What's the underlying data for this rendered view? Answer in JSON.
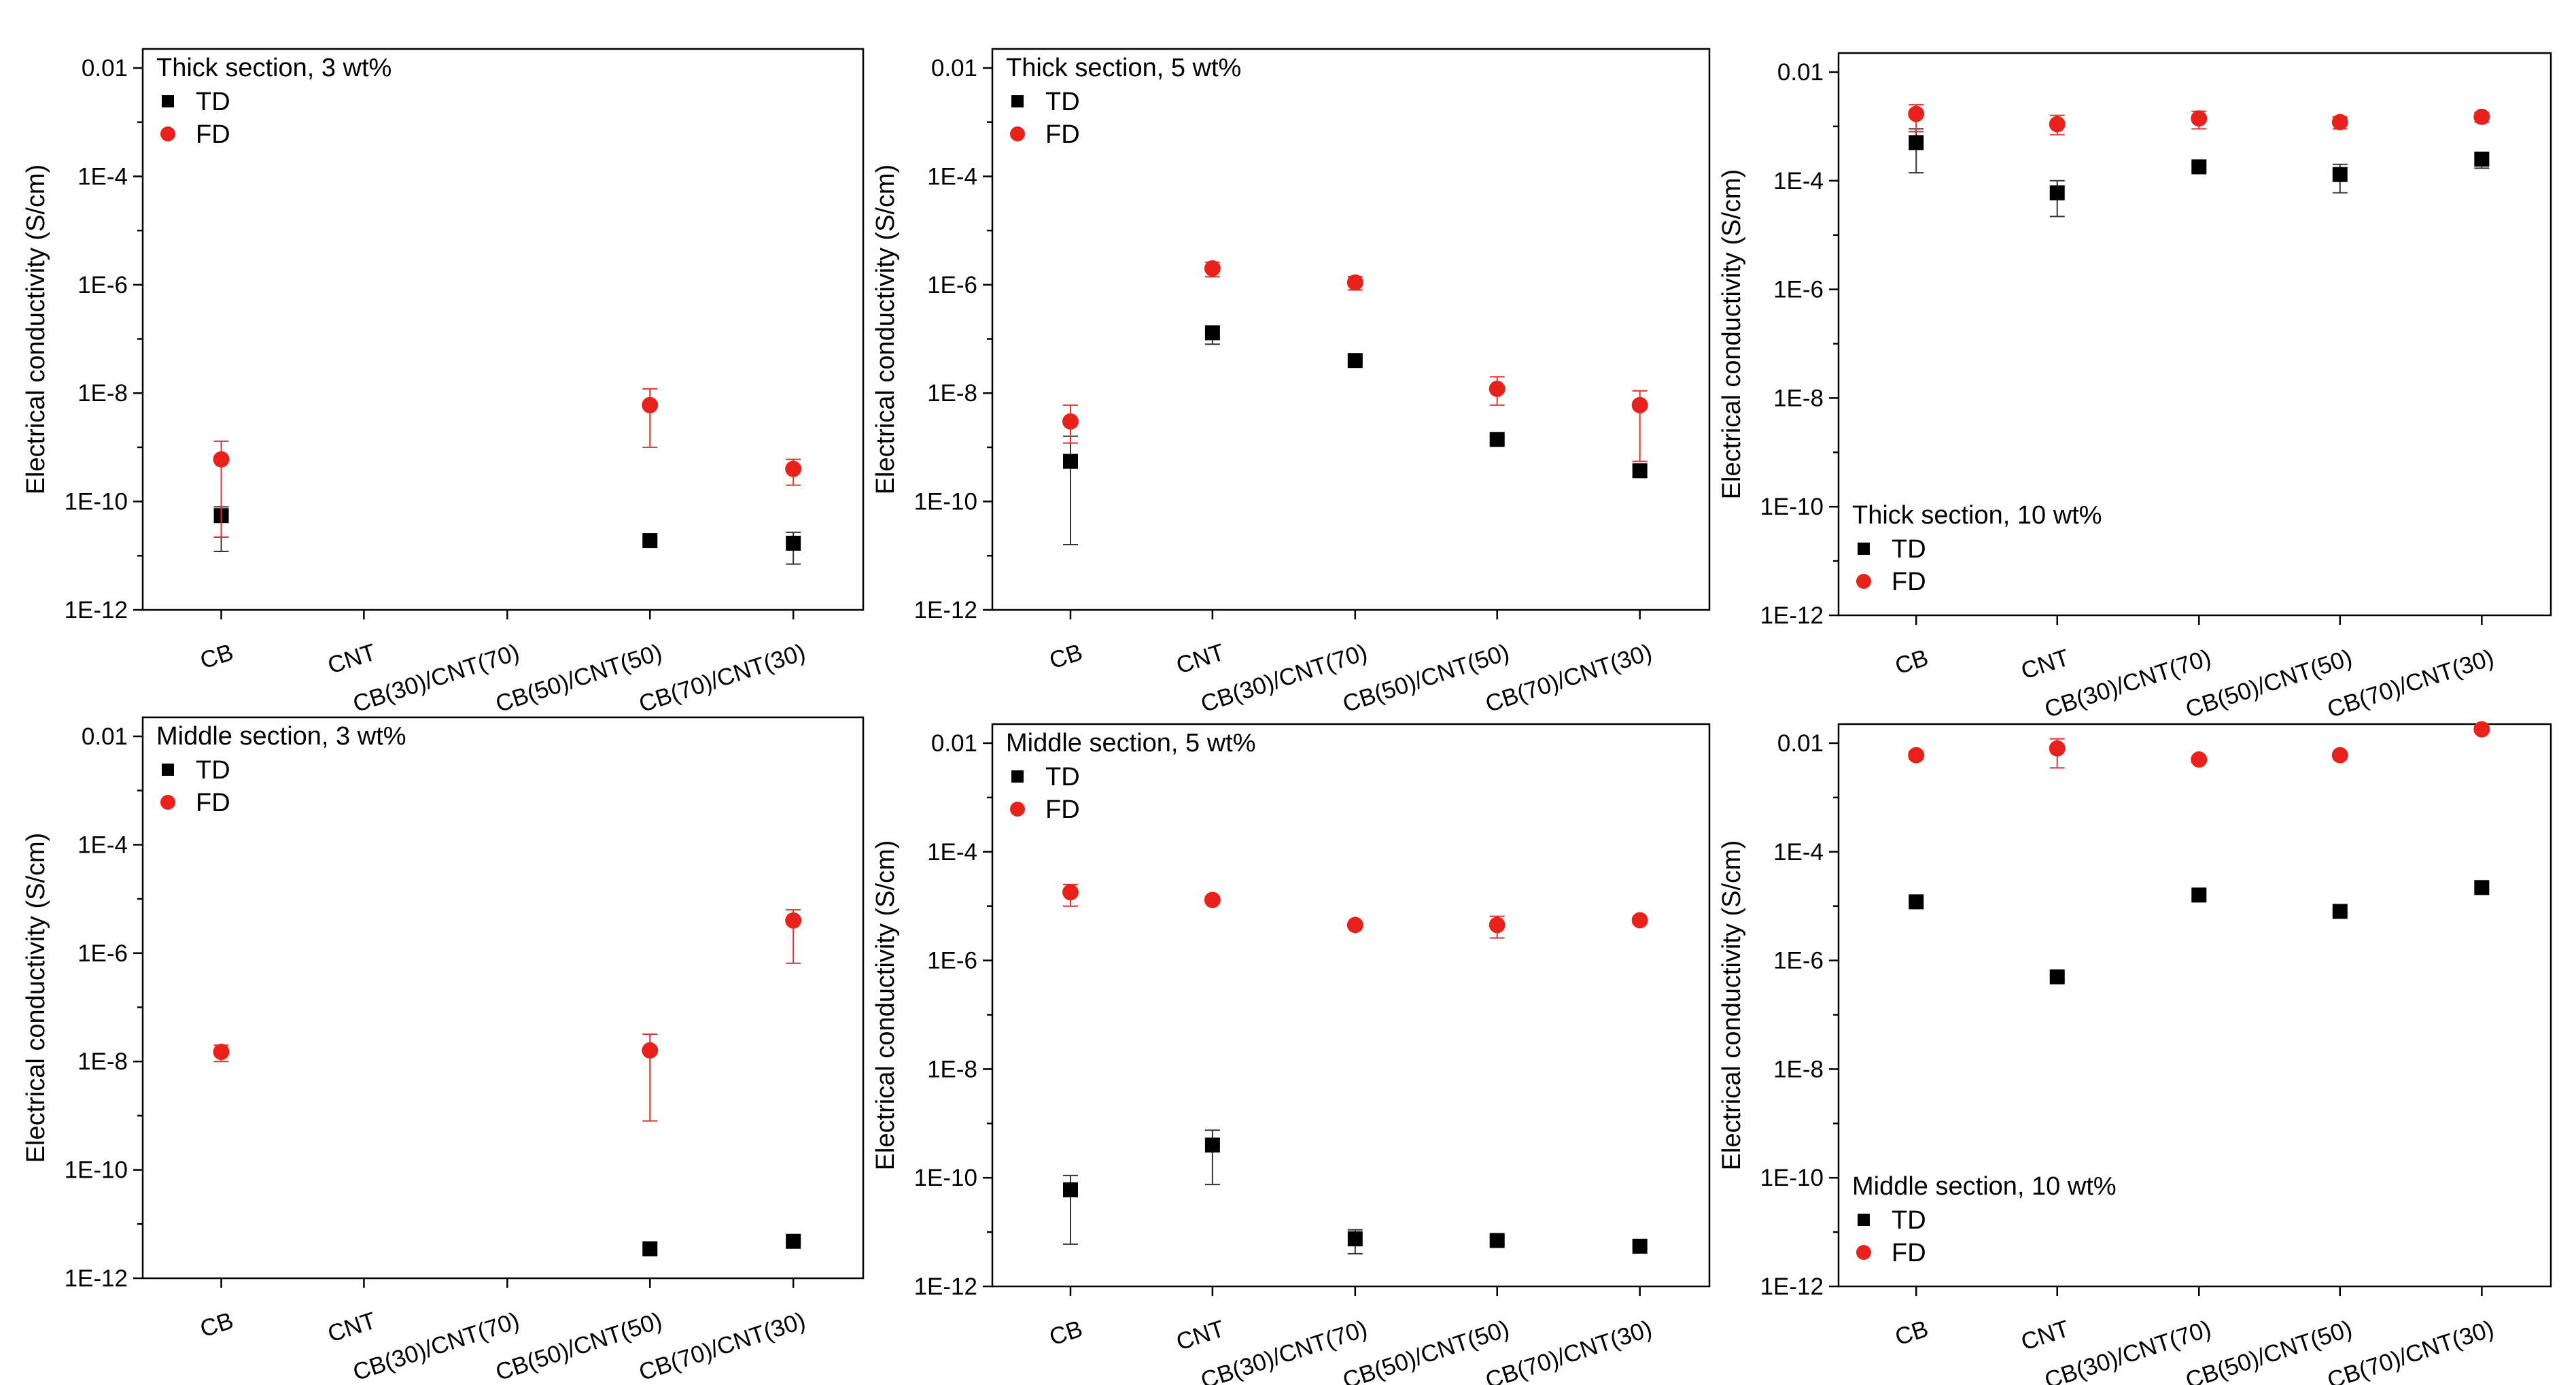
{
  "figure": {
    "y_axis_label": "Electrical conductivity (S/cm)",
    "y_tick_labels": [
      "0.01",
      "1E-4",
      "1E-6",
      "1E-8",
      "1E-10",
      "1E-12"
    ],
    "colors": {
      "TD": "#000000",
      "FD": "#e8211b",
      "FD_error": "#e03030",
      "TD_error": "#333333"
    }
  },
  "chart_data": [
    {
      "type": "scatter",
      "title": "Thick section, 3 wt%",
      "legend_position": "top-left",
      "ylabel": "Electrical conductivity (S/cm)",
      "yscale": "log",
      "ylim": [
        1e-12,
        0.01
      ],
      "categories": [
        "CB",
        "CNT",
        "CB(30)/CNT(70)",
        "CB(50)/CNT(50)",
        "CB(70)/CNT(30)"
      ],
      "series": [
        {
          "name": "TD",
          "marker": "square",
          "values": [
            5.5e-11,
            null,
            null,
            1.9e-11,
            1.7e-11
          ],
          "err_low": [
            1.2e-11,
            null,
            null,
            1.7e-11,
            7e-12
          ],
          "err_high": [
            8e-11,
            null,
            null,
            2.1e-11,
            2.7e-11
          ]
        },
        {
          "name": "FD",
          "marker": "circle",
          "values": [
            6e-10,
            null,
            null,
            6e-09,
            4e-10
          ],
          "err_low": [
            2.2e-11,
            null,
            null,
            1e-09,
            2e-10
          ],
          "err_high": [
            1.3e-09,
            null,
            null,
            1.2e-08,
            6e-10
          ]
        }
      ]
    },
    {
      "type": "scatter",
      "title": "Thick section, 5 wt%",
      "legend_position": "top-left",
      "ylabel": "Electrical conductivity (S/cm)",
      "yscale": "log",
      "ylim": [
        1e-12,
        0.01
      ],
      "categories": [
        "CB",
        "CNT",
        "CB(30)/CNT(70)",
        "CB(50)/CNT(50)",
        "CB(70)/CNT(30)"
      ],
      "series": [
        {
          "name": "TD",
          "marker": "square",
          "values": [
            5.5e-10,
            1.3e-07,
            4e-08,
            1.4e-09,
            3.7e-10
          ],
          "err_low": [
            1.6e-11,
            8e-08,
            3.6e-08,
            1.2e-09,
            2.9e-10
          ],
          "err_high": [
            1.6e-09,
            1.7e-07,
            4.4e-08,
            1.6e-09,
            4.8e-10
          ]
        },
        {
          "name": "FD",
          "marker": "circle",
          "values": [
            3e-09,
            2e-06,
            1.1e-06,
            1.2e-08,
            6e-09
          ],
          "err_low": [
            1.2e-09,
            1.4e-06,
            8e-07,
            6e-09,
            5.5e-10
          ],
          "err_high": [
            6e-09,
            2.6e-06,
            1.4e-06,
            2e-08,
            1.1e-08
          ]
        }
      ]
    },
    {
      "type": "scatter",
      "title": "Thick section, 10 wt%",
      "legend_position": "bottom-left",
      "ylabel": "Electrical conductivity (S/cm)",
      "yscale": "log",
      "ylim": [
        1e-12,
        0.01
      ],
      "categories": [
        "CB",
        "CNT",
        "CB(30)/CNT(70)",
        "CB(50)/CNT(50)",
        "CB(70)/CNT(30)"
      ],
      "series": [
        {
          "name": "TD",
          "marker": "square",
          "values": [
            0.0005,
            6e-05,
            0.00018,
            0.00013,
            0.00025
          ],
          "err_low": [
            0.00014,
            2.2e-05,
            0.00016,
            6e-05,
            0.00017
          ],
          "err_high": [
            0.0009,
            0.0001,
            0.0002,
            0.0002,
            0.0003
          ]
        },
        {
          "name": "FD",
          "marker": "circle",
          "values": [
            0.0017,
            0.0011,
            0.0014,
            0.0012,
            0.0015
          ],
          "err_low": [
            0.0008,
            0.0007,
            0.0009,
            0.0009,
            0.0012
          ],
          "err_high": [
            0.0025,
            0.0016,
            0.0019,
            0.0015,
            0.0018
          ]
        }
      ]
    },
    {
      "type": "scatter",
      "title": "Middle section, 3 wt%",
      "legend_position": "top-left",
      "ylabel": "Electrical conductivity (S/cm)",
      "yscale": "log",
      "ylim": [
        1e-12,
        0.01
      ],
      "categories": [
        "CB",
        "CNT",
        "CB(30)/CNT(70)",
        "CB(50)/CNT(50)",
        "CB(70)/CNT(30)"
      ],
      "series": [
        {
          "name": "TD",
          "marker": "square",
          "values": [
            null,
            null,
            null,
            3.5e-12,
            4.8e-12
          ],
          "err_low": [
            null,
            null,
            null,
            2.7e-12,
            4.4e-12
          ],
          "err_high": [
            null,
            null,
            null,
            4.3e-12,
            5.2e-12
          ]
        },
        {
          "name": "FD",
          "marker": "circle",
          "values": [
            1.5e-08,
            null,
            null,
            1.6e-08,
            4e-06
          ],
          "err_low": [
            1e-08,
            null,
            null,
            8e-10,
            6.5e-07
          ],
          "err_high": [
            2e-08,
            null,
            null,
            3.2e-08,
            6.3e-06
          ]
        }
      ]
    },
    {
      "type": "scatter",
      "title": "Middle section, 5 wt%",
      "legend_position": "top-left",
      "ylabel": "Electrical conductivity (S/cm)",
      "yscale": "log",
      "ylim": [
        1e-12,
        0.01
      ],
      "categories": [
        "CB",
        "CNT",
        "CB(30)/CNT(70)",
        "CB(50)/CNT(50)",
        "CB(70)/CNT(30)"
      ],
      "series": [
        {
          "name": "TD",
          "marker": "square",
          "values": [
            6e-11,
            4e-10,
            7.5e-12,
            7e-12,
            5.5e-12
          ],
          "err_low": [
            6e-12,
            7.5e-11,
            4e-12,
            6e-12,
            5e-12
          ],
          "err_high": [
            1.1e-10,
            7.5e-10,
            1.1e-11,
            8e-12,
            6e-12
          ]
        },
        {
          "name": "FD",
          "marker": "circle",
          "values": [
            1.8e-05,
            1.3e-05,
            4.5e-06,
            4.5e-06,
            5.5e-06
          ],
          "err_low": [
            1e-05,
            1.15e-05,
            4e-06,
            2.6e-06,
            5e-06
          ],
          "err_high": [
            2.5e-05,
            1.5e-05,
            5e-06,
            6.5e-06,
            6e-06
          ]
        }
      ]
    },
    {
      "type": "scatter",
      "title": "Middle section, 10 wt%",
      "legend_position": "bottom-left",
      "ylabel": "Electrical conductivity (S/cm)",
      "yscale": "log",
      "ylim": [
        1e-12,
        0.01
      ],
      "categories": [
        "CB",
        "CNT",
        "CB(30)/CNT(70)",
        "CB(50)/CNT(50)",
        "CB(70)/CNT(30)"
      ],
      "series": [
        {
          "name": "TD",
          "marker": "square",
          "values": [
            1.2e-05,
            5e-07,
            1.6e-05,
            8e-06,
            2.2e-05
          ],
          "err_low": [
            1e-05,
            4.5e-07,
            1.4e-05,
            7e-06,
            2e-05
          ],
          "err_high": [
            1.4e-05,
            5.5e-07,
            1.8e-05,
            9e-06,
            2.4e-05
          ]
        },
        {
          "name": "FD",
          "marker": "circle",
          "values": [
            0.006,
            0.008,
            0.005,
            0.006,
            0.018
          ],
          "err_low": [
            0.005,
            0.0035,
            0.0045,
            0.0055,
            0.016
          ],
          "err_high": [
            0.007,
            0.012,
            0.0055,
            0.0065,
            0.02
          ]
        }
      ]
    }
  ]
}
